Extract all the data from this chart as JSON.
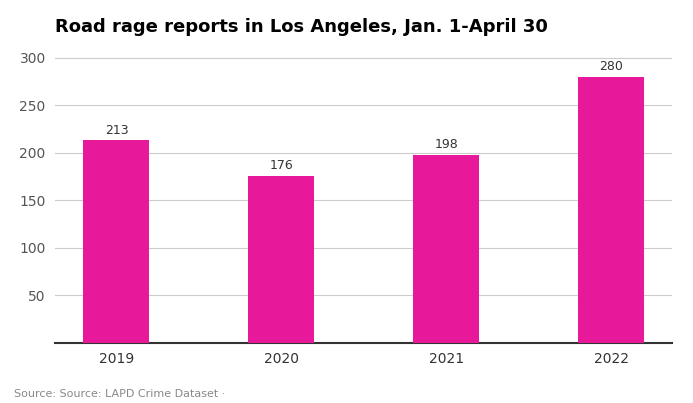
{
  "categories": [
    "2019",
    "2020",
    "2021",
    "2022"
  ],
  "values": [
    213,
    176,
    198,
    280
  ],
  "bar_color": "#e8189a",
  "title": "Road rage reports in Los Angeles, Jan. 1-April 30",
  "title_fontsize": 13,
  "title_fontweight": "bold",
  "ylim": [
    0,
    310
  ],
  "yticks": [
    50,
    100,
    150,
    200,
    250,
    300
  ],
  "source_text": "Source: Source: LAPD Crime Dataset ·",
  "source_fontsize": 8,
  "label_fontsize": 9,
  "tick_fontsize": 10,
  "background_color": "#ffffff",
  "grid_color": "#cccccc",
  "bar_width": 0.4
}
